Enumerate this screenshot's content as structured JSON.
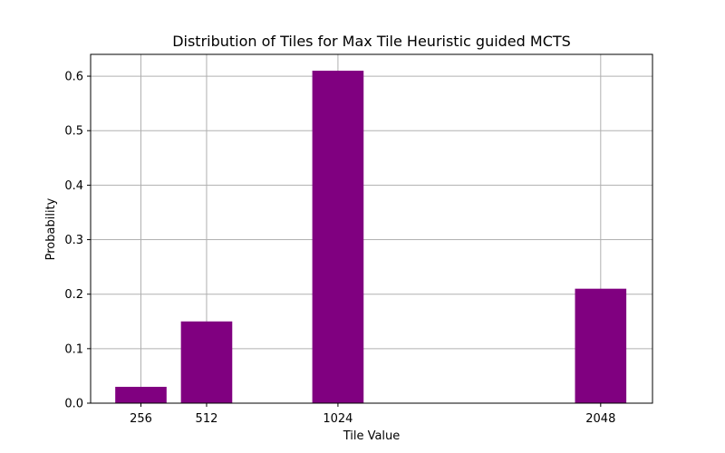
{
  "chart_data": {
    "type": "bar",
    "title": "Distribution of Tiles for Max Tile Heuristic guided MCTS",
    "xlabel": "Tile Value",
    "ylabel": "Probability",
    "categories": [
      "256",
      "512",
      "1024",
      "2048"
    ],
    "x_values": [
      256,
      512,
      1024,
      2048
    ],
    "values": [
      0.03,
      0.15,
      0.61,
      0.21
    ],
    "xlim": [
      60,
      2250
    ],
    "ylim": [
      0,
      0.64
    ],
    "yticks": [
      0.0,
      0.1,
      0.2,
      0.3,
      0.4,
      0.5,
      0.6
    ],
    "ytick_labels": [
      "0.0",
      "0.1",
      "0.2",
      "0.3",
      "0.4",
      "0.5",
      "0.6"
    ],
    "bar_width": 200,
    "bar_color": "#800080",
    "grid": true
  }
}
